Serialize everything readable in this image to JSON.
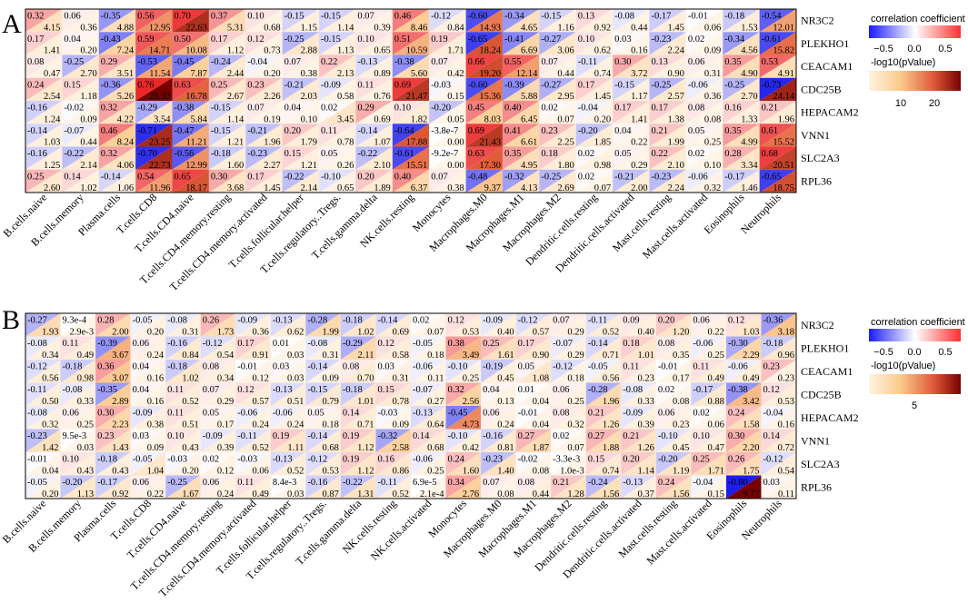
{
  "panels": [
    {
      "label": "A",
      "legend": {
        "title_r": "correlation coefficient",
        "r_ticks": [
          "−0.5",
          "0.0",
          "0.5"
        ],
        "title_p": "-log10(pValue)",
        "p_ticks": [
          "10",
          "20"
        ]
      },
      "chart_data": {
        "type": "heatmap",
        "rows": [
          "NR3C2",
          "PLEKHO1",
          "CEACAM1",
          "CDC25B",
          "HEPACAM2",
          "VNN1",
          "SLC2A3",
          "RPL36"
        ],
        "cols": [
          "B.cells.naive",
          "B.cells.memory",
          "Plasma.cells",
          "T.cells.CD8",
          "T.cells.CD4.naive",
          "T.cells.CD4.memory.resting",
          "T.cells.CD4.memory.activated",
          "T.cells.follicular.helper",
          "T.cells.regulatory..Tregs.",
          "T.cells.gamma.delta",
          "NK.cells.resting",
          "Monocytes",
          "Macrophages.M0",
          "Macrophages.M1",
          "Macrophages.M2",
          "Dendritic.cells.resting",
          "Dendritic.cells.activated",
          "Mast.cells.resting",
          "Mast.cells.activated",
          "Eosinophils",
          "Neutrophils"
        ],
        "r_labels": [
          [
            "0.32",
            "0.06",
            "-0.35",
            "0.56",
            "0.70",
            "0.37",
            "0.10",
            "-0.15",
            "-0.15",
            "0.07",
            "0.46",
            "-0.12",
            "-0.60",
            "-0.34",
            "-0.15",
            "0.13",
            "-0.08",
            "-0.17",
            "-0.01",
            "-0.18",
            "-0.54"
          ],
          [
            "0.17",
            "0.04",
            "-0.43",
            "0.59",
            "0.50",
            "0.17",
            "0.12",
            "-0.25",
            "-0.15",
            "0.10",
            "0.51",
            "0.19",
            "-0.65",
            "-0.41",
            "-0.27",
            "0.10",
            "0.03",
            "-0.23",
            "0.02",
            "-0.34",
            "-0.61"
          ],
          [
            "0.08",
            "-0.25",
            "0.29",
            "-0.53",
            "-0.45",
            "-0.24",
            "-0.04",
            "0.07",
            "0.22",
            "-0.13",
            "-0.38",
            "0.07",
            "0.66",
            "0.55",
            "0.07",
            "-0.11",
            "0.30",
            "0.13",
            "0.06",
            "0.35",
            "0.53"
          ],
          [
            "0.24",
            "0.15",
            "-0.36",
            "0.76",
            "0.63",
            "0.25",
            "0.23",
            "-0.21",
            "-0.09",
            "0.11",
            "0.69",
            "-0.03",
            "-0.60",
            "-0.39",
            "-0.27",
            "0.17",
            "-0.15",
            "-0.25",
            "-0.06",
            "-0.25",
            "-0.73"
          ],
          [
            "-0.16",
            "-0.02",
            "0.32",
            "-0.29",
            "-0.38",
            "-0.15",
            "0.07",
            "0.04",
            "0.02",
            "0.29",
            "0.10",
            "-0.20",
            "0.45",
            "0.40",
            "0.02",
            "-0.04",
            "0.17",
            "0.17",
            "0.08",
            "0.16",
            "0.21"
          ],
          [
            "-0.14",
            "-0.07",
            "0.46",
            "-0.71",
            "-0.47",
            "-0.15",
            "-0.21",
            "0.20",
            "0.11",
            "-0.14",
            "-0.64",
            "-3.8e-7",
            "0.69",
            "0.41",
            "0.23",
            "-0.20",
            "0.04",
            "0.21",
            "0.05",
            "0.35",
            "0.61"
          ],
          [
            "-0.16",
            "-0.22",
            "0.32",
            "-0.70",
            "-0.56",
            "-0.18",
            "-0.23",
            "0.15",
            "0.05",
            "-0.22",
            "-0.61",
            "-9.2e-7",
            "0.63",
            "0.35",
            "0.18",
            "0.02",
            "0.05",
            "0.22",
            "0.02",
            "0.28",
            "0.68"
          ],
          [
            "0.25",
            "0.14",
            "-0.14",
            "0.54",
            "0.65",
            "0.30",
            "0.17",
            "-0.22",
            "-0.10",
            "0.20",
            "0.40",
            "0.07",
            "-0.48",
            "-0.32",
            "-0.25",
            "0.02",
            "-0.21",
            "-0.23",
            "-0.06",
            "-0.17",
            "-0.65"
          ]
        ],
        "p_labels": [
          [
            "4.15",
            "0.36",
            "4.88",
            "12.95",
            "22.63",
            "5.31",
            "0.68",
            "1.15",
            "1.14",
            "0.39",
            "8.46",
            "0.84",
            "14.93",
            "4.65",
            "1.16",
            "0.92",
            "0.44",
            "1.45",
            "0.06",
            "1.53",
            "12.01"
          ],
          [
            "1.41",
            "0.20",
            "7.24",
            "14.71",
            "10.08",
            "1.12",
            "0.73",
            "2.88",
            "1.13",
            "0.65",
            "10.59",
            "1.71",
            "18.24",
            "6.69",
            "3.06",
            "0.62",
            "0.16",
            "2.24",
            "0.09",
            "4.56",
            "15.82"
          ],
          [
            "0.47",
            "2.70",
            "3.51",
            "11.54",
            "7.87",
            "2.44",
            "0.20",
            "0.38",
            "2.13",
            "0.89",
            "5.60",
            "0.42",
            "19.20",
            "12.14",
            "0.44",
            "0.74",
            "3.72",
            "0.90",
            "0.31",
            "4.90",
            "4.91"
          ],
          [
            "2.54",
            "1.18",
            "5.26",
            "28.33",
            "16.78",
            "2.67",
            "2.26",
            "2.03",
            "0.58",
            "0.76",
            "21.47",
            "0.15",
            "15.36",
            "5.88",
            "2.95",
            "1.45",
            "1.17",
            "2.57",
            "0.36",
            "2.70",
            "24.14"
          ],
          [
            "1.24",
            "0.09",
            "4.22",
            "3.54",
            "5.84",
            "1.14",
            "0.19",
            "0.10",
            "3.45",
            "0.69",
            "1.82",
            "0.05",
            "8.03",
            "6.45",
            "0.07",
            "0.20",
            "1.41",
            "1.38",
            "0.08",
            "1.33",
            "1.96"
          ],
          [
            "1.03",
            "0.44",
            "8.24",
            "23.25",
            "11.21",
            "1.21",
            "1.96",
            "1.79",
            "0.78",
            "1.07",
            "17.88",
            "0.00",
            "21.43",
            "6.61",
            "2.25",
            "1.85",
            "0.22",
            "1.99",
            "0.25",
            "4.99",
            "15.52"
          ],
          [
            "1.25",
            "2.14",
            "4.06",
            "22.73",
            "12.99",
            "1.60",
            "2.27",
            "1.21",
            "0.26",
            "2.10",
            "15.51",
            "0.00",
            "17.30",
            "4.95",
            "1.80",
            "0.98",
            "0.29",
            "2.10",
            "0.10",
            "3.34",
            "20.51"
          ],
          [
            "2.60",
            "1.02",
            "1.06",
            "11.96",
            "18.17",
            "3.68",
            "1.45",
            "2.14",
            "0.65",
            "1.89",
            "6.37",
            "0.38",
            "9.37",
            "4.13",
            "2.69",
            "0.07",
            "2.00",
            "2.24",
            "0.32",
            "1.46",
            "18.75"
          ]
        ],
        "r_range": [
          -0.76,
          0.76
        ],
        "p_range": [
          0,
          28.33
        ]
      }
    },
    {
      "label": "B",
      "legend": {
        "title_r": "correlation coefficient",
        "r_ticks": [
          "−0.5",
          "0.0",
          "0.5"
        ],
        "title_p": "-log10(pValue)",
        "p_ticks": [
          "5"
        ]
      },
      "chart_data": {
        "type": "heatmap",
        "rows": [
          "NR3C2",
          "PLEKHO1",
          "CEACAM1",
          "CDC25B",
          "HEPACAM2",
          "VNN1",
          "SLC2A3",
          "RPL36"
        ],
        "cols": [
          "B.cells.naive",
          "B.cells.memory",
          "Plasma.cells",
          "T.cells.CD8",
          "T.cells.CD4.naive",
          "T.cells.CD4.memory.resting",
          "T.cells.CD4.memory.activated",
          "T.cells.follicular.helper",
          "T.cells.regulatory..Tregs.",
          "T.cells.gamma.delta",
          "NK.cells.resting",
          "NK.cells.activated",
          "Monocytes",
          "Macrophages.M0",
          "Macrophages.M1",
          "Macrophages.M2",
          "Dendritic.cells.resting",
          "Dendritic.cells.activated",
          "Mast.cells.resting",
          "Mast.cells.activated",
          "Eosinophils",
          "Neutrophils"
        ],
        "r_labels": [
          [
            "-0.27",
            "9.3e-4",
            "0.28",
            "-0.05",
            "-0.08",
            "0.26",
            "-0.09",
            "-0.13",
            "-0.28",
            "-0.18",
            "-0.14",
            "0.02",
            "0.12",
            "-0.09",
            "-0.12",
            "0.07",
            "-0.11",
            "0.09",
            "0.20",
            "0.06",
            "0.12",
            "-0.36"
          ],
          [
            "-0.08",
            "0.11",
            "-0.39",
            "0.06",
            "-0.16",
            "-0.12",
            "0.17",
            "0.01",
            "-0.08",
            "-0.29",
            "0.12",
            "-0.05",
            "0.38",
            "0.25",
            "0.17",
            "-0.07",
            "-0.14",
            "0.18",
            "0.08",
            "-0.06",
            "-0.30",
            "-0.18"
          ],
          [
            "-0.12",
            "-0.18",
            "0.36",
            "0.04",
            "-0.18",
            "0.08",
            "-0.01",
            "0.03",
            "-0.14",
            "0.08",
            "0.03",
            "-0.06",
            "-0.10",
            "-0.19",
            "0.05",
            "-0.12",
            "-0.05",
            "0.11",
            "-0.01",
            "0.11",
            "-0.06",
            "0.23"
          ],
          [
            "-0.11",
            "-0.08",
            "-0.35",
            "0.04",
            "0.11",
            "0.07",
            "0.12",
            "-0.13",
            "-0.15",
            "-0.18",
            "0.15",
            "-0.07",
            "0.32",
            "0.04",
            "0.01",
            "0.06",
            "-0.28",
            "-0.08",
            "0.02",
            "-0.17",
            "-0.38",
            "0.12"
          ],
          [
            "-0.08",
            "0.06",
            "0.30",
            "-0.09",
            "0.11",
            "0.05",
            "-0.06",
            "-0.06",
            "0.05",
            "0.14",
            "-0.03",
            "-0.13",
            "-0.45",
            "0.06",
            "-0.01",
            "0.08",
            "0.21",
            "-0.09",
            "0.06",
            "0.02",
            "0.24",
            "-0.04"
          ],
          [
            "-0.23",
            "9.5e-3",
            "0.23",
            "0.03",
            "0.10",
            "-0.09",
            "-0.11",
            "0.19",
            "-0.14",
            "0.19",
            "-0.32",
            "0.14",
            "-0.10",
            "-0.16",
            "0.27",
            "0.02",
            "0.27",
            "0.21",
            "-0.10",
            "0.10",
            "0.30",
            "0.14"
          ],
          [
            "-0.01",
            "0.10",
            "-0.18",
            "-0.05",
            "-0.03",
            "0.02",
            "-0.03",
            "-0.13",
            "-0.12",
            "0.19",
            "0.16",
            "-0.06",
            "0.24",
            "-0.23",
            "-0.02",
            "-3.3e-3",
            "0.15",
            "0.20",
            "-0.20",
            "0.25",
            "0.26",
            "-0.12"
          ],
          [
            "-0.05",
            "-0.20",
            "-0.17",
            "0.06",
            "-0.25",
            "0.06",
            "0.11",
            "8.4e-3",
            "-0.16",
            "-0.22",
            "-0.11",
            "6.9e-5",
            "0.34",
            "0.07",
            "0.08",
            "0.21",
            "-0.24",
            "-0.13",
            "0.24",
            "-0.04",
            "-0.80",
            "0.03"
          ]
        ],
        "p_labels": [
          [
            "1.93",
            "2.9e-3",
            "2.00",
            "0.20",
            "0.31",
            "1.73",
            "0.36",
            "0.62",
            "1.99",
            "1.02",
            "0.69",
            "0.07",
            "0.53",
            "0.40",
            "0.57",
            "0.29",
            "0.52",
            "0.40",
            "1.20",
            "0.22",
            "1.03",
            "3.18"
          ],
          [
            "0.34",
            "0.49",
            "3.67",
            "0.24",
            "0.84",
            "0.54",
            "0.91",
            "0.03",
            "0.31",
            "2.11",
            "0.58",
            "0.18",
            "3.49",
            "1.61",
            "0.90",
            "0.29",
            "0.71",
            "1.01",
            "0.35",
            "0.25",
            "2.29",
            "0.96"
          ],
          [
            "0.56",
            "0.98",
            "3.07",
            "0.16",
            "1.02",
            "0.34",
            "0.12",
            "0.03",
            "0.09",
            "0.70",
            "0.31",
            "0.11",
            "0.25",
            "0.45",
            "1.08",
            "0.18",
            "0.56",
            "0.23",
            "0.17",
            "0.49",
            "0.49",
            "0.23"
          ],
          [
            "0.50",
            "0.33",
            "2.89",
            "0.16",
            "0.52",
            "0.29",
            "0.57",
            "0.51",
            "0.79",
            "1.01",
            "0.78",
            "0.27",
            "2.56",
            "0.13",
            "0.04",
            "0.25",
            "1.96",
            "0.33",
            "0.08",
            "0.88",
            "3.42",
            "0.53"
          ],
          [
            "0.32",
            "0.25",
            "2.23",
            "0.38",
            "0.51",
            "0.17",
            "0.24",
            "0.24",
            "0.18",
            "0.71",
            "0.09",
            "0.64",
            "4.73",
            "0.24",
            "0.04",
            "0.32",
            "1.26",
            "0.39",
            "0.23",
            "0.06",
            "1.58",
            "0.16"
          ],
          [
            "1.42",
            "0.03",
            "1.43",
            "0.09",
            "0.43",
            "0.39",
            "0.52",
            "1.11",
            "0.68",
            "1.12",
            "2.58",
            "0.68",
            "0.42",
            "0.81",
            "1.87",
            "0.07",
            "1.88",
            "1.26",
            "0.45",
            "0.47",
            "2.20",
            "0.72"
          ],
          [
            "0.04",
            "0.43",
            "0.43",
            "1.04",
            "0.20",
            "0.12",
            "0.06",
            "0.52",
            "0.53",
            "1.12",
            "0.86",
            "0.25",
            "1.60",
            "1.40",
            "0.08",
            "1.0e-3",
            "0.74",
            "1.14",
            "1.19",
            "1.71",
            "1.75",
            "0.54"
          ],
          [
            "0.20",
            "1.13",
            "0.92",
            "0.22",
            "1.67",
            "0.24",
            "0.49",
            "0.03",
            "0.87",
            "1.31",
            "0.52",
            "2.1e-4",
            "2.76",
            "0.08",
            "0.44",
            "1.28",
            "1.56",
            "0.37",
            "1.56",
            "0.15",
            "9.77",
            "0.11"
          ]
        ],
        "r_range": [
          -0.8,
          0.8
        ],
        "p_range": [
          0,
          9.77
        ]
      }
    }
  ]
}
